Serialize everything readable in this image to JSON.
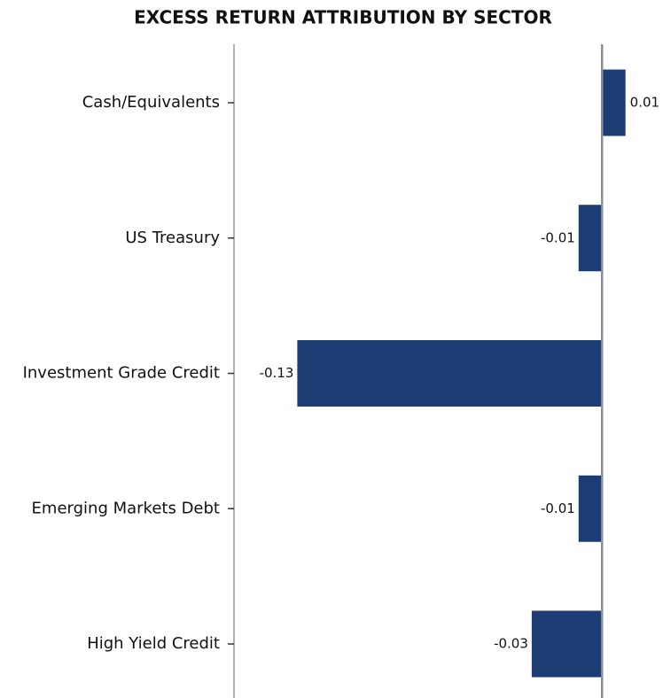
{
  "chart_data": {
    "type": "barh",
    "title": "EXCESS RETURN ATTRIBUTION BY SECTOR",
    "categories": [
      "Cash/Equivalents",
      "US Treasury",
      "Investment Grade Credit",
      "Emerging Markets Debt",
      "High Yield Credit"
    ],
    "values": [
      0.01,
      -0.01,
      -0.13,
      -0.01,
      -0.03
    ],
    "color": "#1c3c74",
    "xlim": [
      -0.157,
      0.026
    ]
  }
}
